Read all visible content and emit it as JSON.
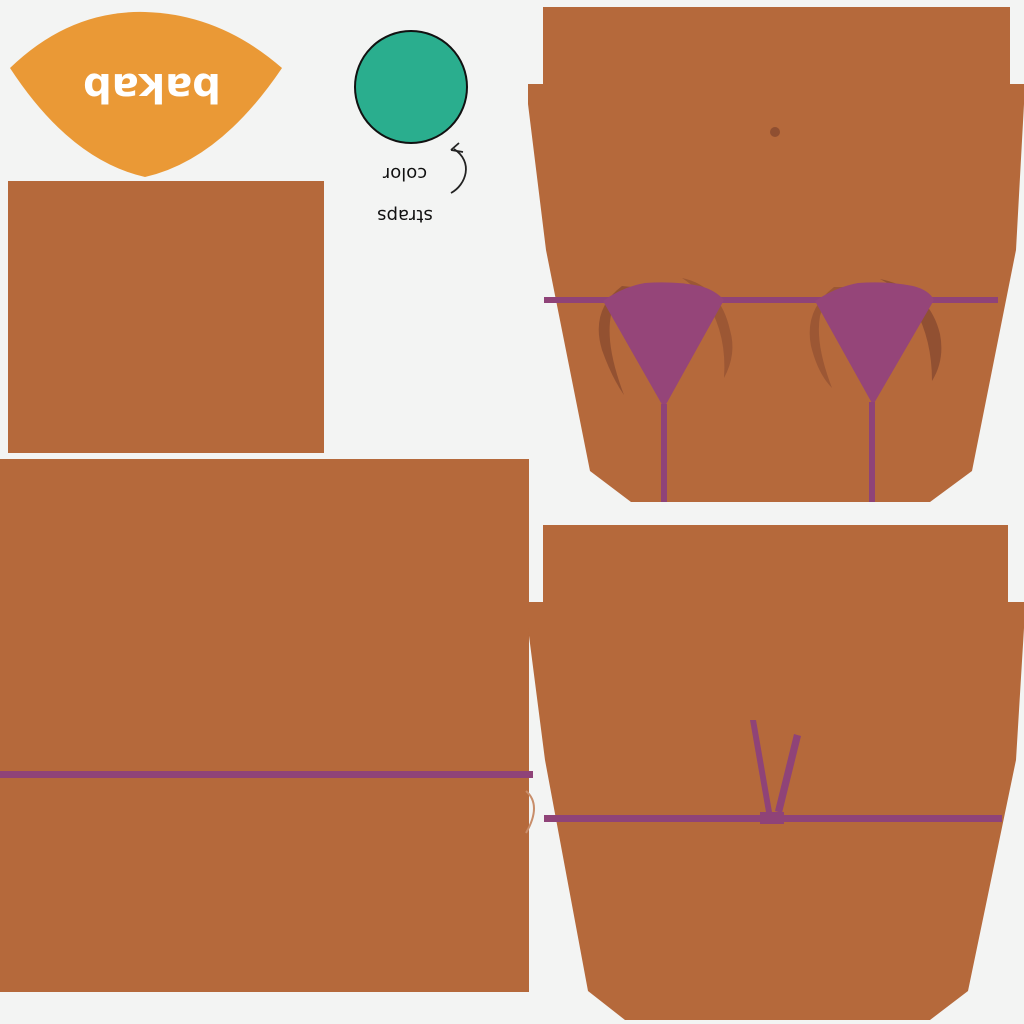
{
  "canvas": {
    "background": "#f3f4f3"
  },
  "palette": {
    "skin": "#b5693b",
    "skin_shadow": "#8f4f31",
    "strap": "#8f4378",
    "strap_fill": "#954579",
    "label_fill": "#ea9936",
    "swatch": "#2aae8e",
    "outline": "#111111"
  },
  "label_patch": {
    "text": "bakab",
    "mirrored": true
  },
  "color_swatch": {
    "note_line1": "straps",
    "note_line2": "color",
    "mirrored": true,
    "arrow": "curved-arrow-icon"
  }
}
